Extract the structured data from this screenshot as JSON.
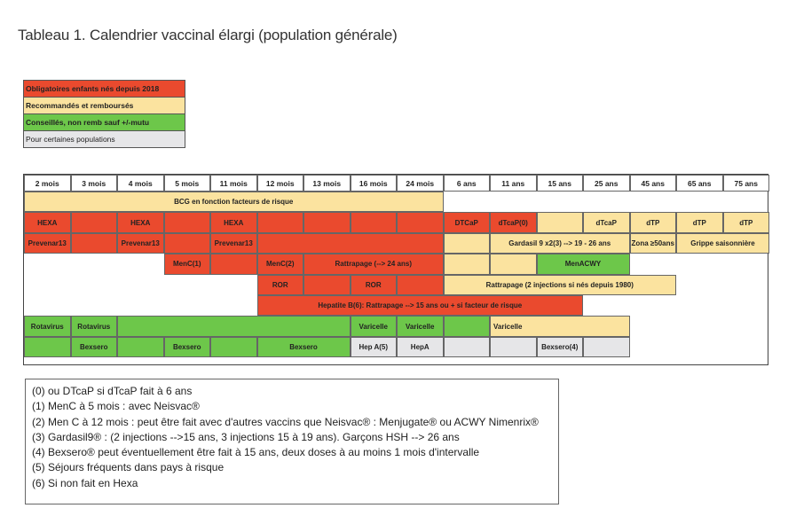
{
  "title": "Tableau 1. Calendrier vaccinal élargi (population générale)",
  "colors": {
    "red": "#ea4a2e",
    "yellow": "#fbe39f",
    "green": "#6dc74a",
    "grey": "#e6e6e8"
  },
  "legend": [
    {
      "label": "Obligatoires enfants nés depuis 2018",
      "color": "red"
    },
    {
      "label": "Recommandés et remboursés",
      "color": "yellow"
    },
    {
      "label": "Conseillés, non remb sauf +/-mutu",
      "color": "green"
    },
    {
      "label": "Pour certaines populations",
      "color": "grey"
    }
  ],
  "ages": [
    "2 mois",
    "3 mois",
    "4 mois",
    "5 mois",
    "11 mois",
    "12 mois",
    "13 mois",
    "16 mois",
    "24 mois",
    "6 ans",
    "11 ans",
    "15 ans",
    "25 ans",
    "45 ans",
    "65 ans",
    "75 ans"
  ],
  "rows": [
    [
      {
        "start": 0,
        "span": 9,
        "color": "yellow",
        "text": "BCG en fonction facteurs de risque"
      }
    ],
    [
      {
        "start": 0,
        "span": 1,
        "color": "red",
        "text": "HEXA"
      },
      {
        "start": 1,
        "span": 1,
        "color": "red",
        "text": ""
      },
      {
        "start": 2,
        "span": 1,
        "color": "red",
        "text": "HEXA"
      },
      {
        "start": 3,
        "span": 1,
        "color": "red",
        "text": ""
      },
      {
        "start": 4,
        "span": 1,
        "color": "red",
        "text": "HEXA"
      },
      {
        "start": 5,
        "span": 1,
        "color": "red",
        "text": ""
      },
      {
        "start": 6,
        "span": 1,
        "color": "red",
        "text": ""
      },
      {
        "start": 7,
        "span": 1,
        "color": "red",
        "text": ""
      },
      {
        "start": 8,
        "span": 1,
        "color": "red",
        "text": ""
      },
      {
        "start": 9,
        "span": 1,
        "color": "red",
        "text": "DTCaP"
      },
      {
        "start": 10,
        "span": 1,
        "color": "red",
        "text": "dTcaP(0)"
      },
      {
        "start": 11,
        "span": 1,
        "color": "yellow",
        "text": ""
      },
      {
        "start": 12,
        "span": 1,
        "color": "yellow",
        "text": "dTcaP"
      },
      {
        "start": 13,
        "span": 1,
        "color": "yellow",
        "text": "dTP"
      },
      {
        "start": 14,
        "span": 1,
        "color": "yellow",
        "text": "dTP"
      },
      {
        "start": 15,
        "span": 1,
        "color": "yellow",
        "text": "dTP"
      }
    ],
    [
      {
        "start": 0,
        "span": 1,
        "color": "red",
        "text": "Prevenar13"
      },
      {
        "start": 1,
        "span": 1,
        "color": "red",
        "text": ""
      },
      {
        "start": 2,
        "span": 1,
        "color": "red",
        "text": "Prevenar13"
      },
      {
        "start": 3,
        "span": 1,
        "color": "red",
        "text": ""
      },
      {
        "start": 4,
        "span": 1,
        "color": "red",
        "text": "Prevenar13"
      },
      {
        "start": 5,
        "span": 4,
        "color": "red",
        "text": ""
      },
      {
        "start": 9,
        "span": 1,
        "color": "yellow",
        "text": ""
      },
      {
        "start": 10,
        "span": 3,
        "color": "yellow",
        "text": "Gardasil 9 x2(3) --> 19 - 26 ans"
      },
      {
        "start": 13,
        "span": 1,
        "color": "yellow",
        "text": "Zona ≥50ans"
      },
      {
        "start": 14,
        "span": 2,
        "color": "yellow",
        "text": "Grippe saisonnière"
      }
    ],
    [
      {
        "start": 3,
        "span": 1,
        "color": "red",
        "text": "MenC(1)"
      },
      {
        "start": 4,
        "span": 1,
        "color": "red",
        "text": ""
      },
      {
        "start": 5,
        "span": 1,
        "color": "red",
        "text": "MenC(2)"
      },
      {
        "start": 6,
        "span": 3,
        "color": "red",
        "text": "Rattrapage (--> 24 ans)"
      },
      {
        "start": 9,
        "span": 1,
        "color": "yellow",
        "text": ""
      },
      {
        "start": 10,
        "span": 1,
        "color": "yellow",
        "text": ""
      },
      {
        "start": 11,
        "span": 2,
        "color": "green",
        "text": "MenACWY"
      }
    ],
    [
      {
        "start": 5,
        "span": 1,
        "color": "red",
        "text": "ROR"
      },
      {
        "start": 6,
        "span": 1,
        "color": "red",
        "text": ""
      },
      {
        "start": 7,
        "span": 1,
        "color": "red",
        "text": "ROR"
      },
      {
        "start": 8,
        "span": 1,
        "color": "red",
        "text": ""
      },
      {
        "start": 9,
        "span": 5,
        "color": "yellow",
        "text": "Rattrapage (2 injections si nés depuis 1980)"
      }
    ],
    [
      {
        "start": 5,
        "span": 7,
        "color": "red",
        "text": "Hepatite B(6): Rattrapage --> 15 ans ou + si facteur de risque"
      }
    ],
    [
      {
        "start": 0,
        "span": 1,
        "color": "green",
        "text": "Rotavirus"
      },
      {
        "start": 1,
        "span": 1,
        "color": "green",
        "text": "Rotavirus"
      },
      {
        "start": 2,
        "span": 5,
        "color": "green",
        "text": ""
      },
      {
        "start": 7,
        "span": 1,
        "color": "green",
        "text": "Varicelle"
      },
      {
        "start": 8,
        "span": 1,
        "color": "green",
        "text": "Varicelle"
      },
      {
        "start": 9,
        "span": 1,
        "color": "green",
        "text": ""
      },
      {
        "start": 10,
        "span": 3,
        "color": "yellow",
        "text": "Varicelle",
        "align": "left"
      }
    ],
    [
      {
        "start": 0,
        "span": 1,
        "color": "green",
        "text": ""
      },
      {
        "start": 1,
        "span": 1,
        "color": "green",
        "text": "Bexsero"
      },
      {
        "start": 2,
        "span": 1,
        "color": "green",
        "text": ""
      },
      {
        "start": 3,
        "span": 1,
        "color": "green",
        "text": "Bexsero"
      },
      {
        "start": 4,
        "span": 1,
        "color": "green",
        "text": ""
      },
      {
        "start": 5,
        "span": 2,
        "color": "green",
        "text": "Bexsero"
      },
      {
        "start": 7,
        "span": 1,
        "color": "grey",
        "text": "Hep A(5)"
      },
      {
        "start": 8,
        "span": 1,
        "color": "grey",
        "text": "HepA"
      },
      {
        "start": 9,
        "span": 1,
        "color": "grey",
        "text": ""
      },
      {
        "start": 10,
        "span": 1,
        "color": "grey",
        "text": ""
      },
      {
        "start": 11,
        "span": 1,
        "color": "grey",
        "text": "Bexsero(4)"
      },
      {
        "start": 12,
        "span": 1,
        "color": "grey",
        "text": ""
      }
    ]
  ],
  "notes": [
    "(0) ou DTcaP si dTcaP fait à 6 ans",
    "(1) MenC à 5 mois : avec Neisvac®",
    "(2) Men C à 12 mois : peut être fait avec d'autres vaccins que Neisvac® : Menjugate® ou ACWY Nimenrix®",
    "(3) Gardasil9® : (2 injections -->15 ans, 3 injections 15 à 19 ans). Garçons HSH --> 26 ans",
    "(4) Bexsero® peut éventuellement être fait à 15 ans, deux doses à au moins 1 mois d'intervalle",
    "(5) Séjours fréquents dans pays à risque",
    "(6) Si non fait en Hexa"
  ]
}
